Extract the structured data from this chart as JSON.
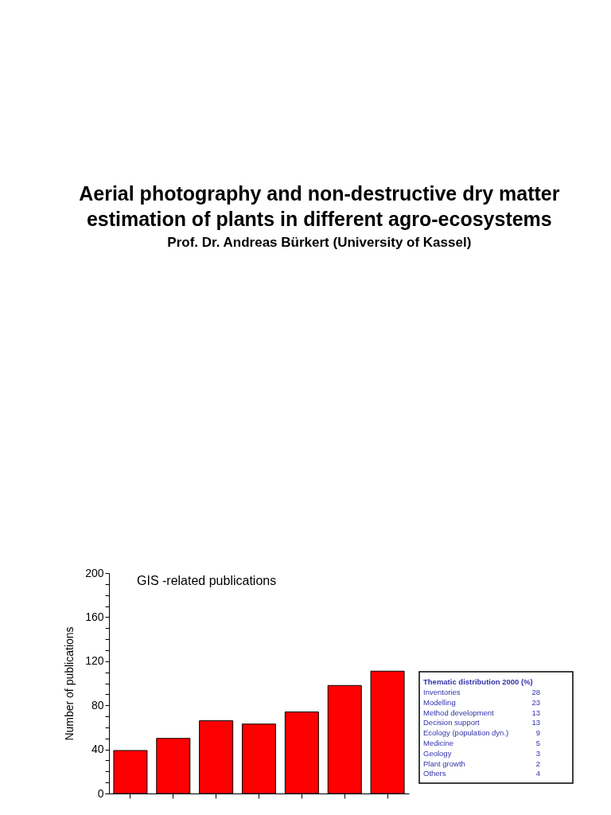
{
  "chart_data": [
    {
      "type": "bar",
      "title": [
        "Aerial photography and non-destructive dry matter",
        "estimation of plants in different agro-ecosystems"
      ],
      "subtitle": "Prof. Dr. Andreas Bürkert (University of Kassel)",
      "annotations": [
        "GIS -related publications"
      ],
      "ylabel": "Number of publications",
      "categories": [
        null,
        null,
        null,
        null,
        null,
        null,
        null
      ],
      "values": [
        39,
        50,
        66,
        63,
        74,
        98,
        111
      ],
      "color": "#ff0000",
      "ylim": [
        0,
        200
      ],
      "yticks": [
        0,
        {
          "value": 10,
          "label": null
        },
        {
          "value": 20,
          "label": null
        },
        {
          "value": 30,
          "label": null
        },
        40,
        {
          "value": 50,
          "label": null
        },
        {
          "value": 60,
          "label": null
        },
        {
          "value": 70,
          "label": null
        },
        80,
        {
          "value": 90,
          "label": null
        },
        {
          "value": 100,
          "label": null
        },
        {
          "value": 110,
          "label": null
        },
        120,
        {
          "value": 130,
          "label": null
        },
        {
          "value": 140,
          "label": null
        },
        {
          "value": 150,
          "label": null
        },
        160,
        {
          "value": 170,
          "label": null
        },
        {
          "value": 180,
          "label": null
        },
        {
          "value": 190,
          "label": null
        },
        200
      ],
      "tick_labels": "y",
      "grid": false
    },
    {
      "type": "other",
      "title": "Thematic distribution 2000 (%)",
      "categories": [
        "Inventories",
        "Modelling",
        "Method development",
        "Decision support",
        "Ecology (population dyn.)",
        "Medicine",
        "Geology",
        "Plant growth",
        "Others"
      ],
      "values": [
        28,
        23,
        13,
        13,
        9,
        5,
        3,
        2,
        4
      ],
      "color": "#3333aa",
      "data_labels": true
    }
  ]
}
